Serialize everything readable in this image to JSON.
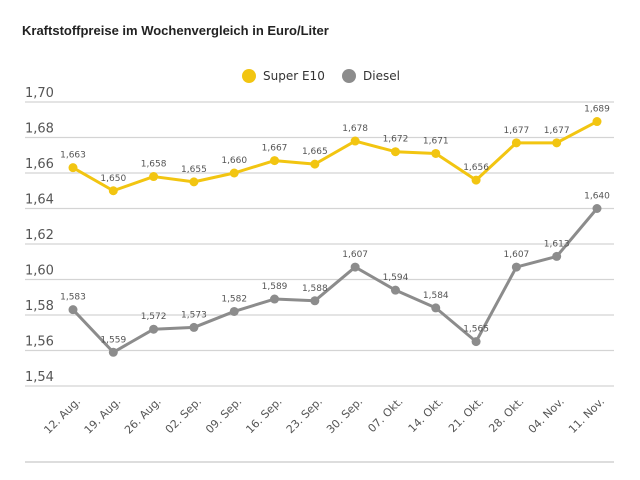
{
  "chart_data": {
    "type": "line",
    "title": "Kraftstoffpreise im Wochenvergleich in Euro/Liter",
    "xlabel": "",
    "ylabel": "",
    "categories": [
      "12. Aug.",
      "19. Aug.",
      "26. Aug.",
      "02. Sep.",
      "09. Sep.",
      "16. Sep.",
      "23. Sep.",
      "30. Sep.",
      "07. Okt.",
      "14. Okt.",
      "21. Okt.",
      "28. Okt.",
      "04. Nov.",
      "11. Nov."
    ],
    "ylim": [
      1.54,
      1.7
    ],
    "yticks": [
      "1,54",
      "1,56",
      "1,58",
      "1,60",
      "1,62",
      "1,64",
      "1,66",
      "1,68",
      "1,70"
    ],
    "ytick_values": [
      1.54,
      1.56,
      1.58,
      1.6,
      1.62,
      1.64,
      1.66,
      1.68,
      1.7
    ],
    "grid": true,
    "legend_position": "top-center",
    "series": [
      {
        "name": "Super E10",
        "color": "#f2c511",
        "values": [
          1.663,
          1.65,
          1.658,
          1.655,
          1.66,
          1.667,
          1.665,
          1.678,
          1.672,
          1.671,
          1.656,
          1.677,
          1.677,
          1.689
        ],
        "labels": [
          "1,663",
          "1,650",
          "1,658",
          "1,655",
          "1,660",
          "1,667",
          "1,665",
          "1,678",
          "1,672",
          "1,671",
          "1,656",
          "1,677",
          "1,677",
          "1,689"
        ]
      },
      {
        "name": "Diesel",
        "color": "#8c8c8c",
        "values": [
          1.583,
          1.559,
          1.572,
          1.573,
          1.582,
          1.589,
          1.588,
          1.607,
          1.594,
          1.584,
          1.565,
          1.607,
          1.613,
          1.64
        ],
        "labels": [
          "1,583",
          "1,559",
          "1,572",
          "1,573",
          "1,582",
          "1,589",
          "1,588",
          "1,607",
          "1,594",
          "1,584",
          "1,565",
          "1,607",
          "1,613",
          "1,640"
        ]
      }
    ]
  }
}
